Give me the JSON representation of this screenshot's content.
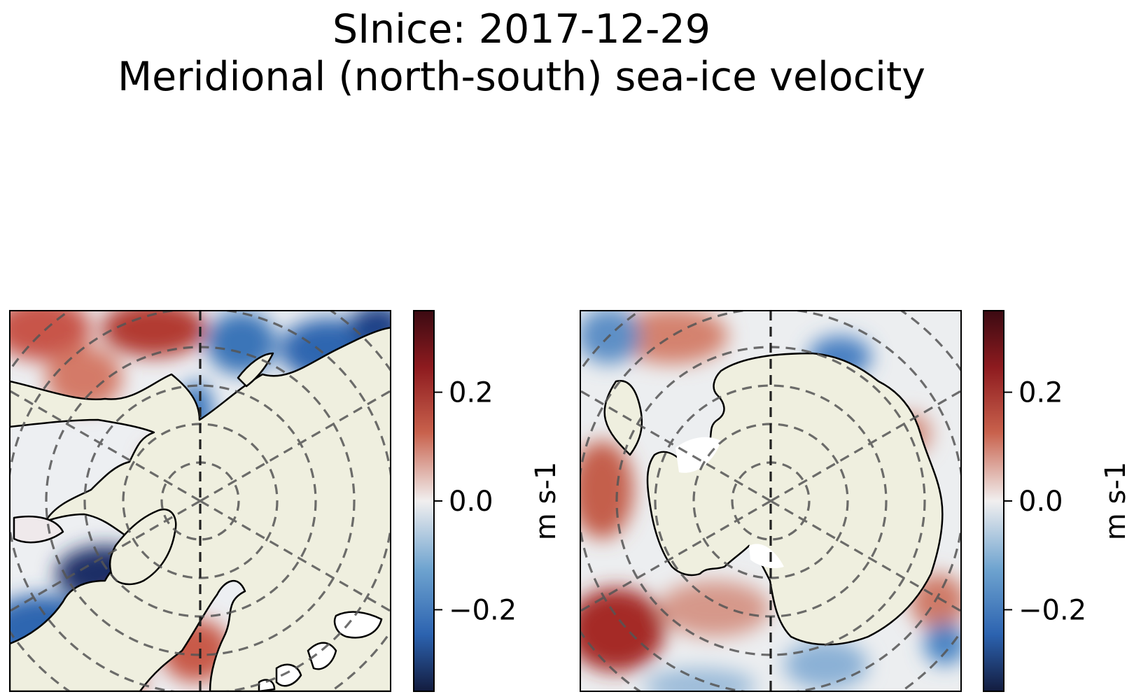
{
  "title": {
    "line1": "SInice: 2017-12-29",
    "line2": "Meridional (north-south) sea-ice velocity"
  },
  "colors": {
    "land": "#efefdf",
    "positive_max": "#3b0a12",
    "positive_mid": "#b83a2c",
    "neutral": "#f1efef",
    "negative_mid": "#2c63b0",
    "negative_max": "#131c3f",
    "gridlines": "#555555"
  },
  "chart_data": [
    {
      "type": "heatmap",
      "region": "Arctic (north polar stereographic)",
      "variable": "Meridional (north-south) sea-ice velocity",
      "colormap": "diverging blue-white-red",
      "clim": [
        -0.35,
        0.35
      ],
      "colorbar": {
        "label": "m s-1",
        "ticks": [
          0.2,
          0.0,
          -0.2
        ],
        "tick_labels": [
          "0.2",
          "0.0",
          "−0.2"
        ]
      },
      "gridlines": true
    },
    {
      "type": "heatmap",
      "region": "Antarctic (south polar stereographic)",
      "variable": "Meridional (north-south) sea-ice velocity",
      "colormap": "diverging blue-white-red",
      "clim": [
        -0.35,
        0.35
      ],
      "colorbar": {
        "label": "m s-1",
        "ticks": [
          0.2,
          0.0,
          -0.2
        ],
        "tick_labels": [
          "0.2",
          "0.0",
          "−0.2"
        ]
      },
      "gridlines": true
    }
  ]
}
